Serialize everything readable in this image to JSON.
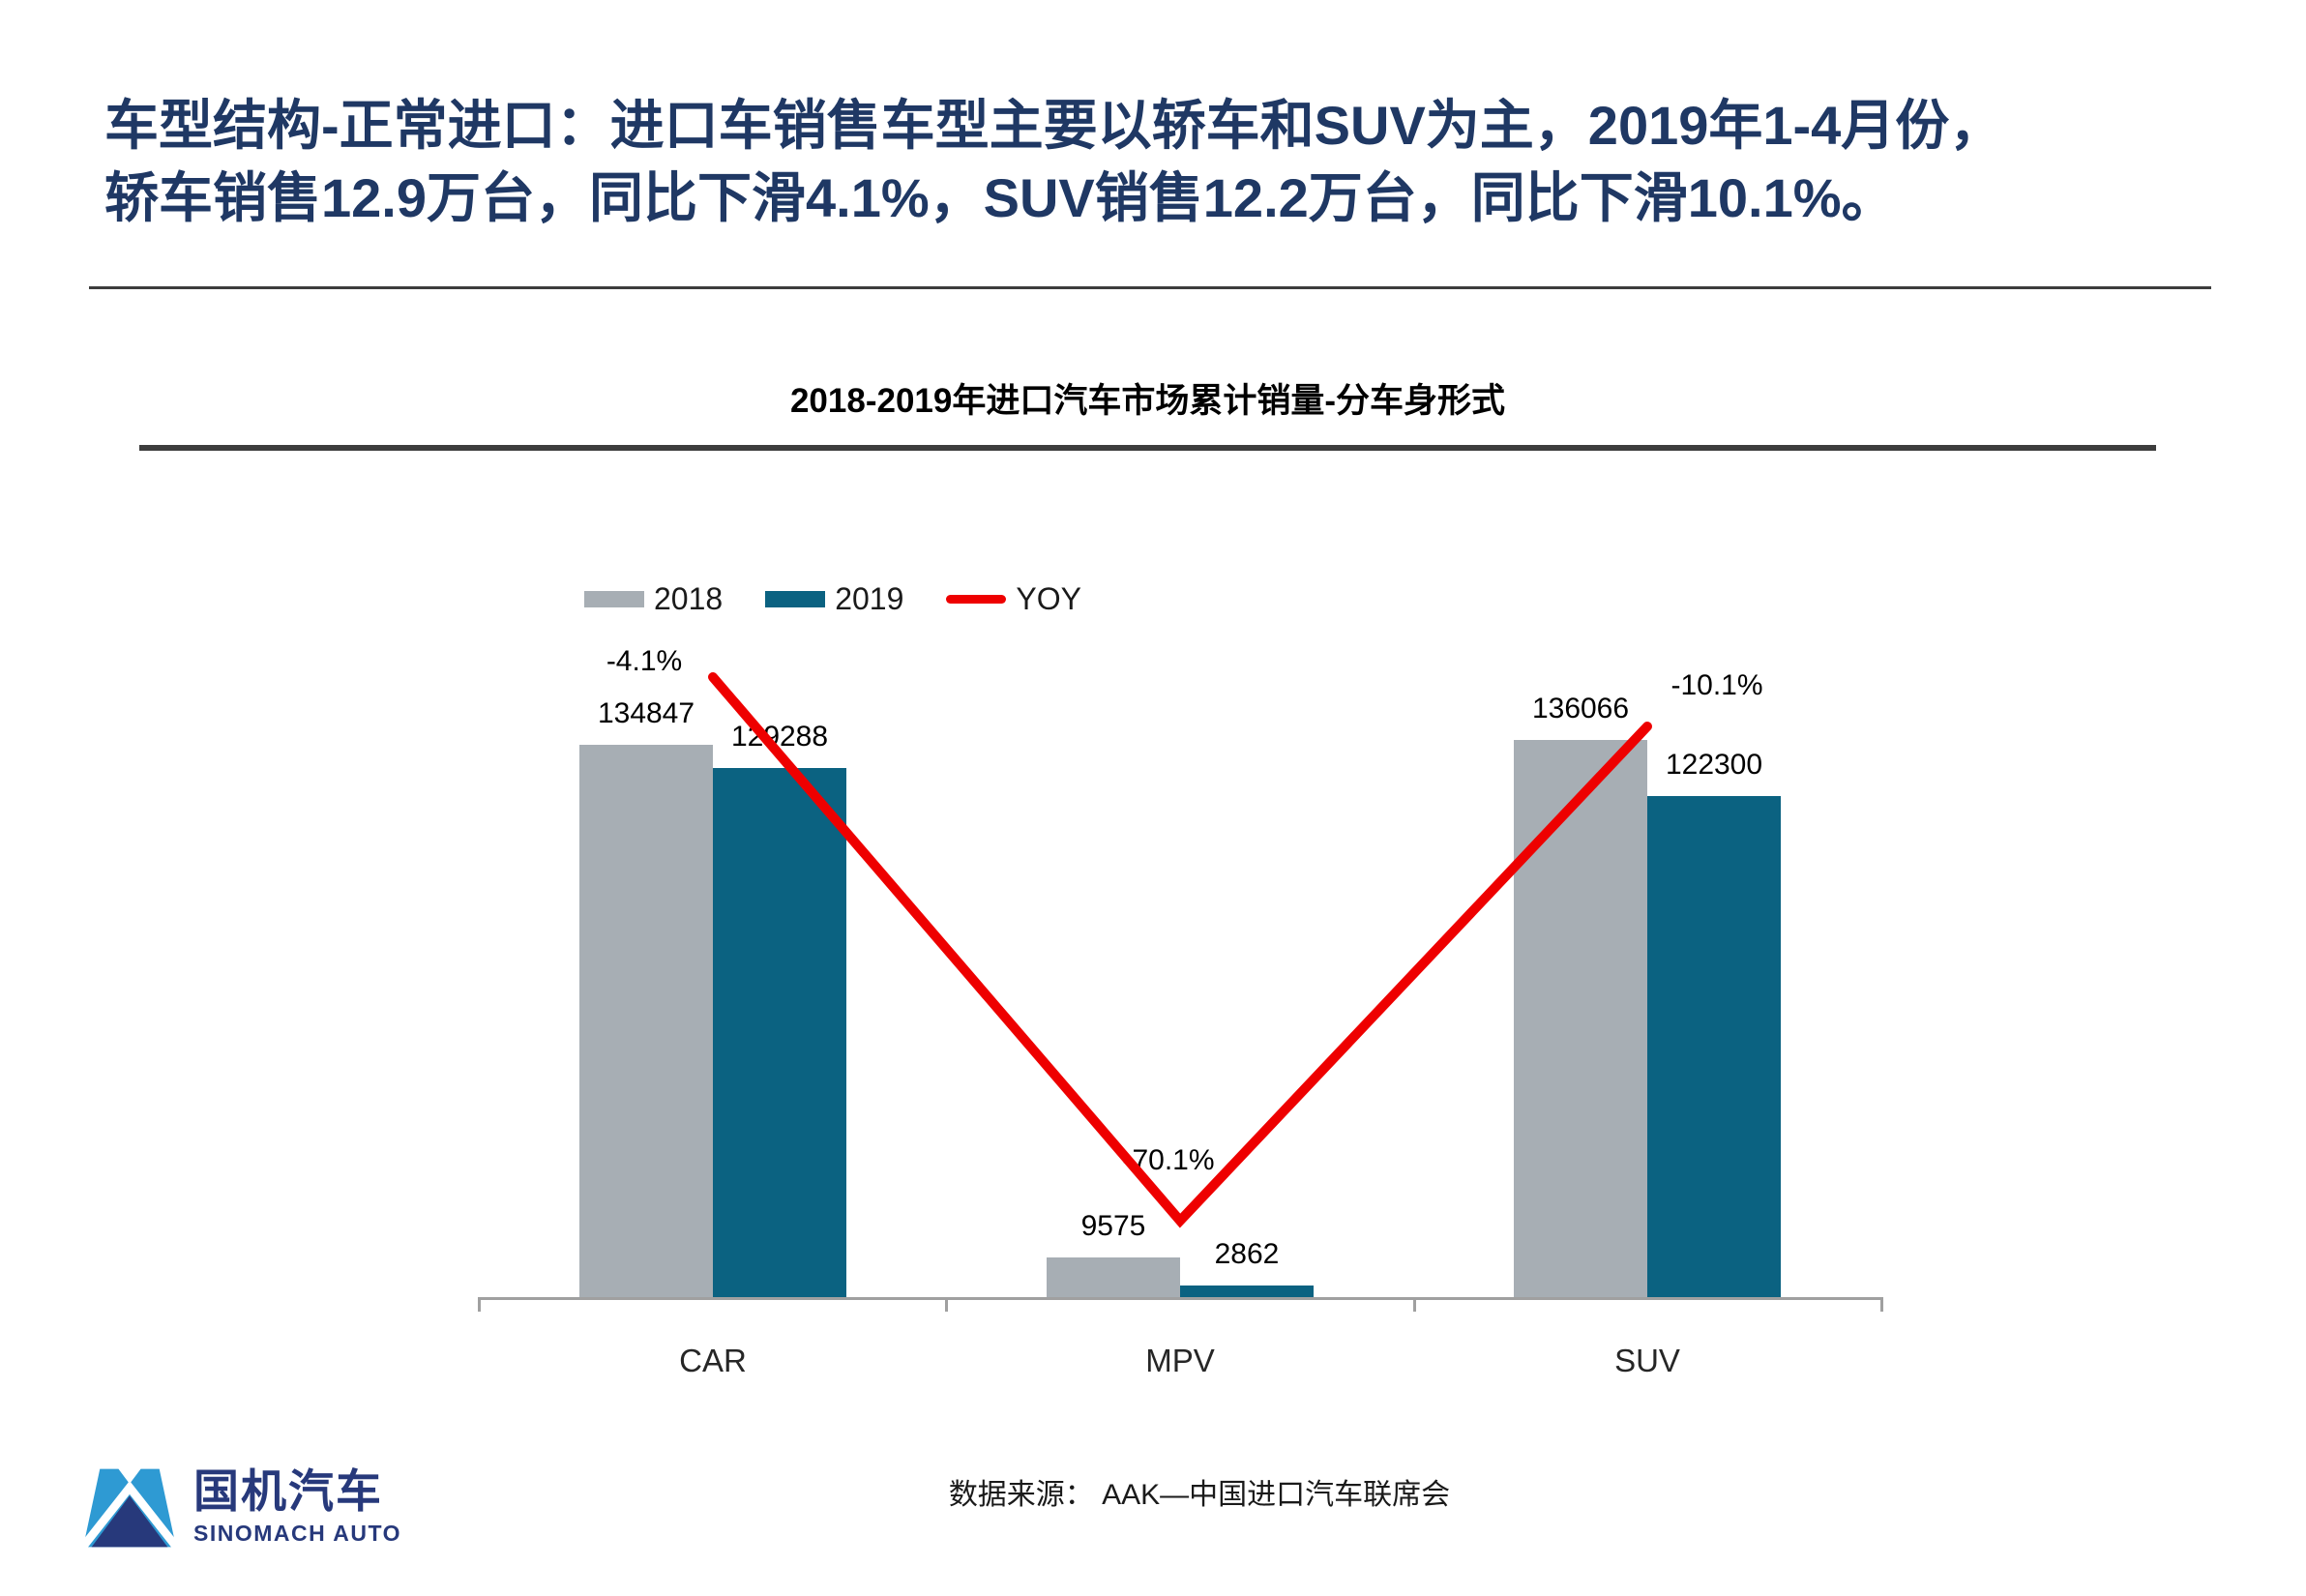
{
  "slide": {
    "title_line1": "车型结构-正常进口：进口车销售车型主要以轿车和SUV为主，2019年1-4月份，",
    "title_line2": "轿车销售12.9万台，同比下滑4.1%，SUV销售12.2万台，同比下滑10.1%。",
    "source": "数据来源：  AAK—中国进口汽车联席会"
  },
  "logo": {
    "name_cn": "国机汽车",
    "name_en": "SINOMACH AUTO"
  },
  "colors": {
    "title_navy": "#1F3864",
    "bar_2018_gray": "#A7AEB4",
    "bar_2019_teal": "#0B6281",
    "yoy_red": "#EE0000",
    "axis_gray": "#A0A0A0",
    "logo_blue": "#2E9AD3",
    "logo_navy": "#27397B"
  },
  "chart_data": {
    "type": "bar",
    "title": "2018-2019年进口汽车市场累计销量-分车身形式",
    "categories": [
      "CAR",
      "MPV",
      "SUV"
    ],
    "series": [
      {
        "name": "2018",
        "kind": "bar",
        "color": "#A7AEB4",
        "values": [
          134847,
          9575,
          136066
        ],
        "labels": [
          "134847",
          "9575",
          "136066"
        ]
      },
      {
        "name": "2019",
        "kind": "bar",
        "color": "#0B6281",
        "values": [
          129288,
          2862,
          122300
        ],
        "labels": [
          "129288",
          "2862",
          "122300"
        ]
      },
      {
        "name": "YOY",
        "kind": "line",
        "color": "#EE0000",
        "values": [
          -4.1,
          -70.1,
          -10.1
        ],
        "labels": [
          "-4.1%",
          "-70.1%",
          "-10.1%"
        ]
      }
    ],
    "legend_position": "top",
    "gridlines": false,
    "value_axis_visible": false
  }
}
